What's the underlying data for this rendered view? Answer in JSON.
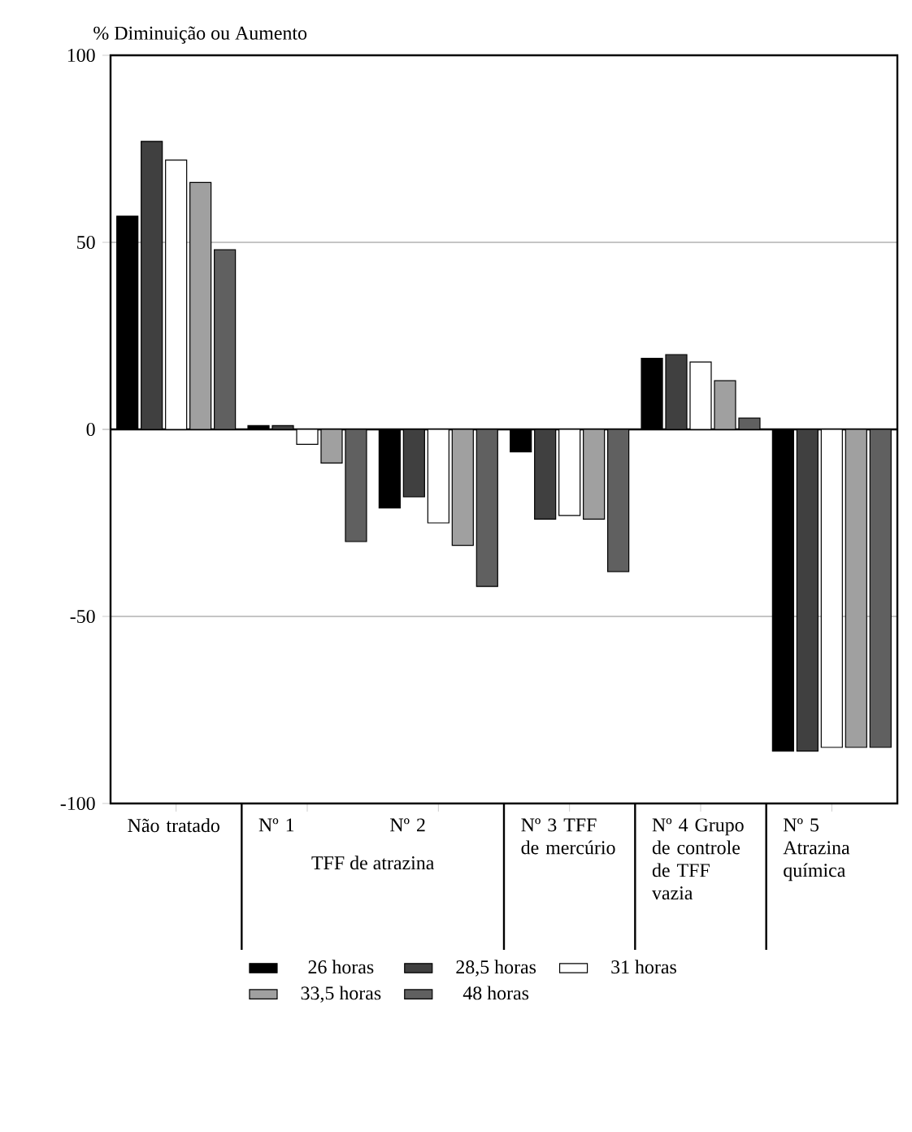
{
  "chart_data": {
    "type": "bar",
    "ylabel": "% Diminuição ou Aumento",
    "categories": [
      "Não tratado",
      "Nº 1",
      "Nº 2",
      "Nº 3 TFF de mercúrio",
      "Nº 4 Grupo de controle de TFF vazia",
      "Nº 5 Atrazina química"
    ],
    "annotations": [
      "TFF de atrazina"
    ],
    "series": [
      {
        "name": "26 horas",
        "color": "#000000",
        "values": [
          57,
          1,
          -21,
          -6,
          19,
          -86
        ]
      },
      {
        "name": "28,5 horas",
        "color": "#404040",
        "values": [
          77,
          1,
          -18,
          -24,
          20,
          -86
        ]
      },
      {
        "name": "31 horas",
        "color": "#ffffff",
        "values": [
          72,
          -4,
          -25,
          -23,
          18,
          -85
        ]
      },
      {
        "name": "33,5 horas",
        "color": "#a0a0a0",
        "values": [
          66,
          -9,
          -31,
          -24,
          13,
          -85
        ]
      },
      {
        "name": "48 horas",
        "color": "#606060",
        "values": [
          48,
          -30,
          -42,
          -38,
          3,
          -85
        ]
      }
    ],
    "ylim": [
      -100,
      100
    ],
    "yticks": [
      -100,
      -50,
      0,
      50,
      100
    ],
    "grid": "y",
    "legend": "bottom"
  }
}
